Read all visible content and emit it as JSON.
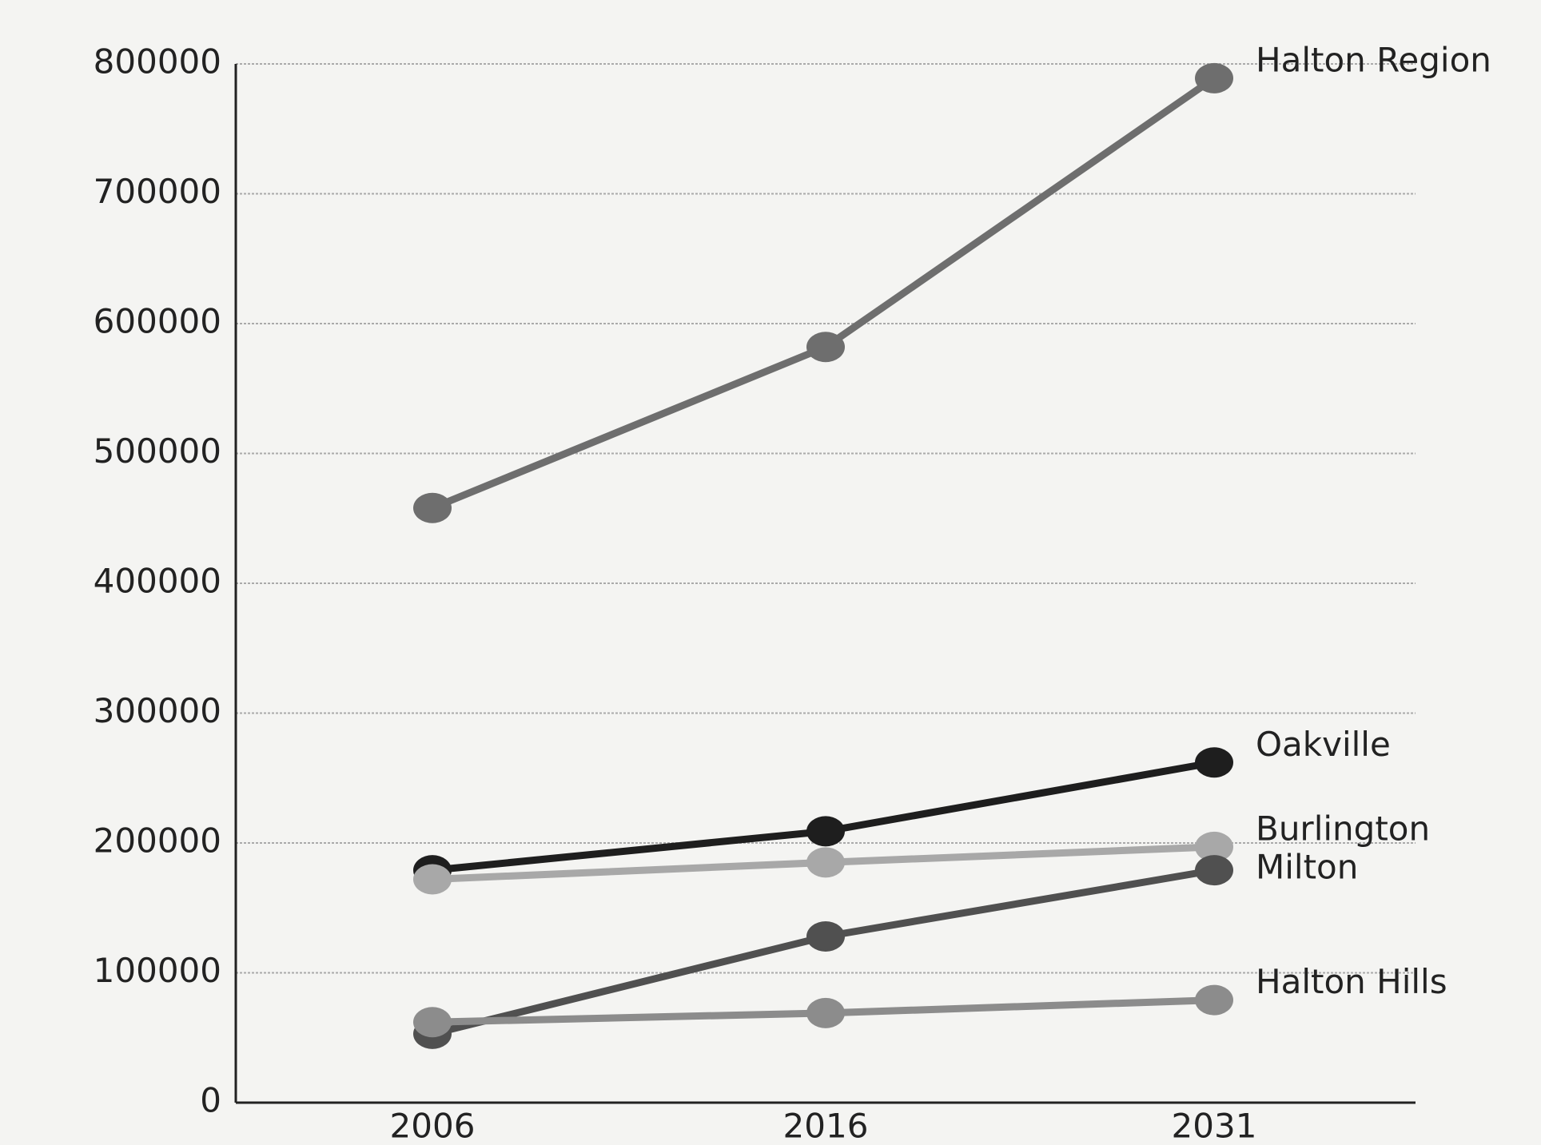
{
  "chart_data": {
    "type": "line",
    "categories": [
      "2006",
      "2016",
      "2031"
    ],
    "series": [
      {
        "name": "Halton Region",
        "color": "#6e6e6e",
        "values": [
          458000,
          582000,
          789000
        ]
      },
      {
        "name": "Oakville",
        "color": "#1e1e1e",
        "values": [
          179000,
          209000,
          262000
        ]
      },
      {
        "name": "Burlington",
        "color": "#a8a8a8",
        "values": [
          172000,
          185000,
          197000
        ]
      },
      {
        "name": "Milton",
        "color": "#505050",
        "values": [
          53000,
          128000,
          179000
        ]
      },
      {
        "name": "Halton Hills",
        "color": "#8c8c8c",
        "values": [
          62000,
          69000,
          79000
        ]
      }
    ],
    "ylim": [
      0,
      800000
    ],
    "yticks": [
      0,
      100000,
      200000,
      300000,
      400000,
      500000,
      600000,
      700000,
      800000
    ],
    "grid": true
  }
}
